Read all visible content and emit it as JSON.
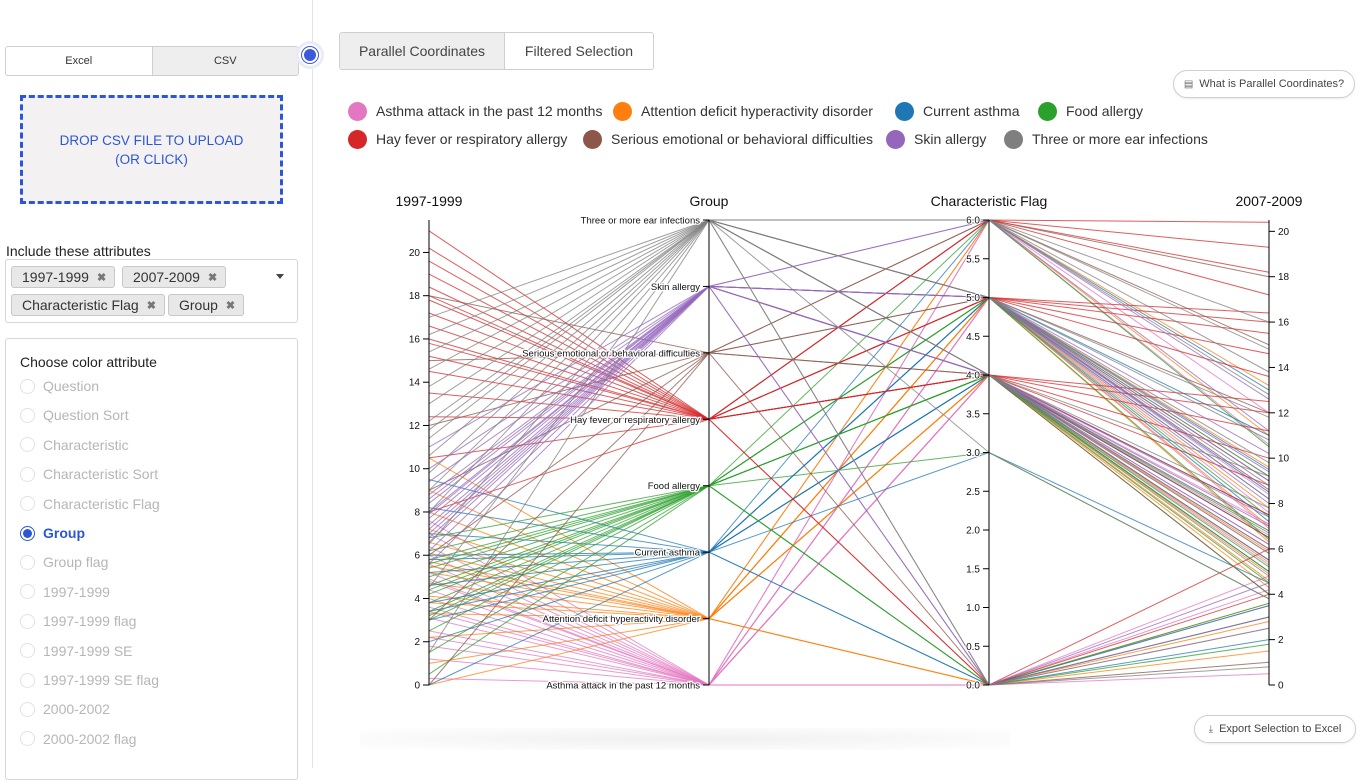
{
  "sidebar": {
    "file_tabs": [
      "Excel",
      "CSV"
    ],
    "dropzone_line1": "DROP CSV FILE TO UPLOAD",
    "dropzone_line2": "(OR CLICK)",
    "attributes_label": "Include these attributes",
    "attribute_tags": [
      "1997-1999",
      "2007-2009",
      "Characteristic Flag",
      "Group"
    ],
    "color_title": "Choose color attribute",
    "color_options": [
      "Question",
      "Question Sort",
      "Characteristic",
      "Characteristic Sort",
      "Characteristic Flag",
      "Group",
      "Group flag",
      "1997-1999",
      "1997-1999 flag",
      "1997-1999 SE",
      "1997-1999 SE flag",
      "2000-2002",
      "2000-2002 flag"
    ],
    "selected_color": "Group",
    "accent": "#2b57d6"
  },
  "view_tabs": [
    "Parallel Coordinates",
    "Filtered Selection"
  ],
  "help_button": "What is Parallel Coordinates?",
  "export_button": "Export Selection to Excel",
  "chart_data": {
    "type": "parallel-coordinates",
    "axes": [
      {
        "name": "1997-1999",
        "kind": "numeric",
        "range": [
          0,
          21.5
        ],
        "ticks": [
          0,
          2,
          4,
          6,
          8,
          10,
          12,
          14,
          16,
          18,
          20
        ]
      },
      {
        "name": "Group",
        "kind": "categorical",
        "categories": [
          "Asthma attack in the past 12 months",
          "Attention deficit hyperactivity disorder",
          "Current asthma",
          "Food allergy",
          "Hay fever or respiratory allergy",
          "Serious emotional or behavioral difficulties",
          "Skin allergy",
          "Three or more ear infections"
        ]
      },
      {
        "name": "Characteristic Flag",
        "kind": "numeric",
        "range": [
          0,
          6
        ],
        "ticks": [
          0.0,
          0.5,
          1.0,
          1.5,
          2.0,
          2.5,
          3.0,
          3.5,
          4.0,
          4.5,
          5.0,
          5.5,
          6.0
        ]
      },
      {
        "name": "2007-2009",
        "kind": "numeric",
        "range": [
          0,
          20.5
        ],
        "ticks": [
          0,
          2,
          4,
          6,
          8,
          10,
          12,
          14,
          16,
          18,
          20
        ]
      }
    ],
    "legend": [
      {
        "name": "Asthma attack in the past 12 months",
        "color": "#e377c2"
      },
      {
        "name": "Attention deficit hyperactivity disorder",
        "color": "#ff7f0e"
      },
      {
        "name": "Current asthma",
        "color": "#1f77b4"
      },
      {
        "name": "Food allergy",
        "color": "#2ca02c"
      },
      {
        "name": "Hay fever or respiratory allergy",
        "color": "#d62728"
      },
      {
        "name": "Serious emotional or behavioral difficulties",
        "color": "#8c564b"
      },
      {
        "name": "Skin allergy",
        "color": "#9467bd"
      },
      {
        "name": "Three or more ear infections",
        "color": "#7f7f7f"
      }
    ],
    "series": [
      {
        "group": 0,
        "y1997": [
          0.3,
          1.2,
          1.8,
          2.5,
          3.1,
          3.6,
          4.0,
          4.4,
          4.8,
          5.2,
          5.6,
          6.0,
          6.4,
          7.0,
          7.6,
          2.2,
          3.4,
          4.9
        ],
        "flag": [
          0,
          0,
          0,
          0,
          0,
          4,
          4,
          4,
          4,
          4,
          5,
          5,
          5,
          6,
          6,
          0,
          4,
          5
        ],
        "y2007": [
          0.5,
          2.5,
          3.5,
          4.2,
          4.8,
          5.3,
          5.8,
          6.2,
          6.6,
          7.1,
          7.6,
          8.4,
          9.2,
          10.6,
          12.0,
          3.0,
          5.0,
          6.9
        ]
      },
      {
        "group": 1,
        "y1997": [
          0,
          1.0,
          2.2,
          3.3,
          4.1,
          4.7,
          5.2,
          5.7,
          6.1,
          6.6,
          7.2,
          8.0,
          9.0,
          10.5,
          3.8,
          5.5
        ],
        "flag": [
          0,
          0,
          0,
          4,
          4,
          4,
          4,
          4,
          5,
          5,
          5,
          5,
          6,
          6,
          4,
          5
        ],
        "y2007": [
          1.5,
          2.8,
          3.6,
          4.3,
          4.9,
          5.4,
          5.9,
          6.5,
          7.0,
          7.8,
          8.6,
          9.6,
          11.0,
          13.2,
          4.6,
          6.3
        ]
      },
      {
        "group": 2,
        "y1997": [
          0,
          2.0,
          3.0,
          3.8,
          4.6,
          5.2,
          6.0,
          7.0,
          8.2,
          9.5,
          3.4,
          5.8
        ],
        "flag": [
          0,
          0,
          3,
          4,
          4,
          4,
          5,
          5,
          5,
          6,
          4,
          5
        ],
        "y2007": [
          2.0,
          3.5,
          4.5,
          5.5,
          6.5,
          7.5,
          8.5,
          9.5,
          11.0,
          13.0,
          5.0,
          7.2
        ]
      },
      {
        "group": 3,
        "y1997": [
          0.5,
          1.5,
          2.5,
          3.0,
          3.4,
          3.8,
          4.2,
          4.6,
          5.0,
          5.4,
          5.8,
          6.2,
          6.8,
          3.2,
          4.4,
          5.6
        ],
        "flag": [
          0,
          0,
          0,
          4,
          4,
          4,
          4,
          4,
          4,
          5,
          5,
          5,
          6,
          3,
          4,
          5
        ],
        "y2007": [
          1.8,
          3.0,
          3.6,
          4.0,
          4.5,
          5.0,
          5.5,
          6.0,
          6.7,
          7.4,
          8.2,
          9.2,
          10.5,
          3.8,
          5.2,
          6.4
        ]
      },
      {
        "group": 4,
        "y1997": [
          8.0,
          10.5,
          12.4,
          13.5,
          14.5,
          15.2,
          16.0,
          16.6,
          17.2,
          17.8,
          18.4,
          19.0,
          19.6,
          20.2,
          21.0,
          15.8,
          18.0
        ],
        "flag": [
          0,
          0,
          4,
          4,
          4,
          4,
          4,
          5,
          5,
          5,
          5,
          6,
          6,
          6,
          6,
          4,
          5
        ],
        "y2007": [
          4.0,
          6.0,
          7.5,
          8.8,
          10.0,
          11.2,
          12.5,
          13.6,
          14.6,
          15.5,
          16.4,
          17.2,
          18.2,
          19.3,
          20.4,
          12.0,
          16.0
        ]
      },
      {
        "group": 5,
        "y1997": [
          0,
          3.0,
          6.0,
          9.0,
          12.0,
          15.0,
          18.0
        ],
        "flag": [
          0,
          4,
          4,
          5,
          5,
          6,
          6
        ],
        "y2007": [
          1.0,
          4.0,
          6.5,
          9.0,
          12.0,
          15.0,
          18.0
        ]
      },
      {
        "group": 6,
        "y1997": [
          5.6,
          6.2,
          6.6,
          7.0,
          7.4,
          7.7,
          8.0,
          8.4,
          8.8,
          9.4,
          10.0,
          11.0,
          6.8,
          7.2,
          7.9,
          8.6
        ],
        "flag": [
          0,
          0,
          4,
          4,
          4,
          4,
          5,
          5,
          5,
          5,
          6,
          6,
          4,
          4,
          5,
          5
        ],
        "y2007": [
          3.0,
          4.5,
          5.5,
          6.2,
          6.8,
          7.4,
          8.0,
          8.6,
          9.4,
          10.2,
          11.2,
          12.6,
          6.0,
          7.0,
          8.2,
          9.0
        ]
      },
      {
        "group": 7,
        "y1997": [
          1.5,
          4.5,
          6.5,
          8.0,
          9.0,
          9.8,
          10.6,
          11.4,
          12.2,
          13.0,
          13.8,
          14.6,
          15.4,
          16.2,
          17.0,
          11.8
        ],
        "flag": [
          0,
          0,
          3,
          4,
          4,
          4,
          4,
          5,
          5,
          5,
          5,
          6,
          6,
          6,
          6,
          4
        ],
        "y2007": [
          0.8,
          2.5,
          3.8,
          4.8,
          5.8,
          6.8,
          7.8,
          8.8,
          9.8,
          10.8,
          11.8,
          12.8,
          13.8,
          14.8,
          16.0,
          9.2
        ]
      }
    ]
  }
}
